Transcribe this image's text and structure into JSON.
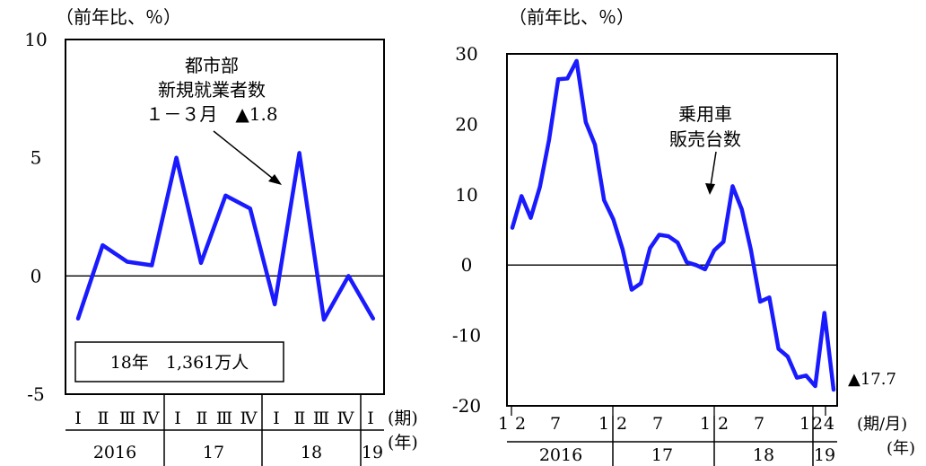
{
  "chart_data": [
    {
      "type": "line",
      "unit_label": "（前年比、％）",
      "ylim": [
        -5,
        10
      ],
      "yticks": [
        "10",
        "5",
        "0",
        "-5"
      ],
      "ytick_values": [
        10,
        5,
        0,
        -5
      ],
      "x": [
        "2016 I",
        "2016 II",
        "2016 III",
        "2016 IV",
        "2017 I",
        "2017 II",
        "2017 III",
        "2017 IV",
        "2018 I",
        "2018 II",
        "2018 III",
        "2018 IV",
        "2019 I"
      ],
      "series": [
        {
          "name": "都市部新規就業者数",
          "color": "#1a1aff",
          "values": [
            -1.8,
            1.3,
            0.6,
            0.45,
            5.0,
            0.55,
            3.4,
            2.85,
            -1.2,
            5.2,
            -1.85,
            0.0,
            -1.8
          ]
        }
      ],
      "annotation": {
        "line1": "都市部",
        "line2": "新規就業者数",
        "line3": "１－３月　▲1.8"
      },
      "boxed_note": "18年　1,361万人",
      "period_labels": [
        "Ⅰ",
        "Ⅱ",
        "Ⅲ",
        "Ⅳ",
        "Ⅰ",
        "Ⅱ",
        "Ⅲ",
        "Ⅳ",
        "Ⅰ",
        "Ⅱ",
        "Ⅲ",
        "Ⅳ",
        "Ⅰ"
      ],
      "year_labels": [
        "2016",
        "17",
        "18",
        "19"
      ],
      "period_unit": "(期)",
      "year_unit": "(年)"
    },
    {
      "type": "line",
      "unit_label": "（前年比、％）",
      "ylim": [
        -20,
        30
      ],
      "yticks": [
        "30",
        "20",
        "10",
        "0",
        "-10",
        "-20"
      ],
      "ytick_values": [
        30,
        20,
        10,
        0,
        -10,
        -20
      ],
      "x_count": 40,
      "series": [
        {
          "name": "乗用車販売台数",
          "color": "#1a1aff",
          "values": [
            5.3,
            9.8,
            6.7,
            11.1,
            17.8,
            26.4,
            26.5,
            29.0,
            20.3,
            17.1,
            9.2,
            6.5,
            2.3,
            -3.5,
            -2.6,
            2.4,
            4.3,
            4.1,
            3.2,
            0.4,
            0.0,
            -0.6,
            2.1,
            3.3,
            11.2,
            7.9,
            2.1,
            -5.2,
            -4.6,
            -11.9,
            -13.0,
            -16.0,
            -15.7,
            -17.2,
            -6.8,
            -17.7
          ]
        }
      ],
      "annotation": {
        "line1": "乗用車",
        "line2": "販売台数"
      },
      "end_label": "▲17.7",
      "month_labels": [
        "1",
        "2",
        "7",
        "1",
        "2",
        "7",
        "1",
        "2",
        "7",
        "1",
        "2",
        "4"
      ],
      "year_labels": [
        "2016",
        "17",
        "18",
        "19"
      ],
      "month_unit": "(期/月)",
      "year_unit": "(年)"
    }
  ]
}
